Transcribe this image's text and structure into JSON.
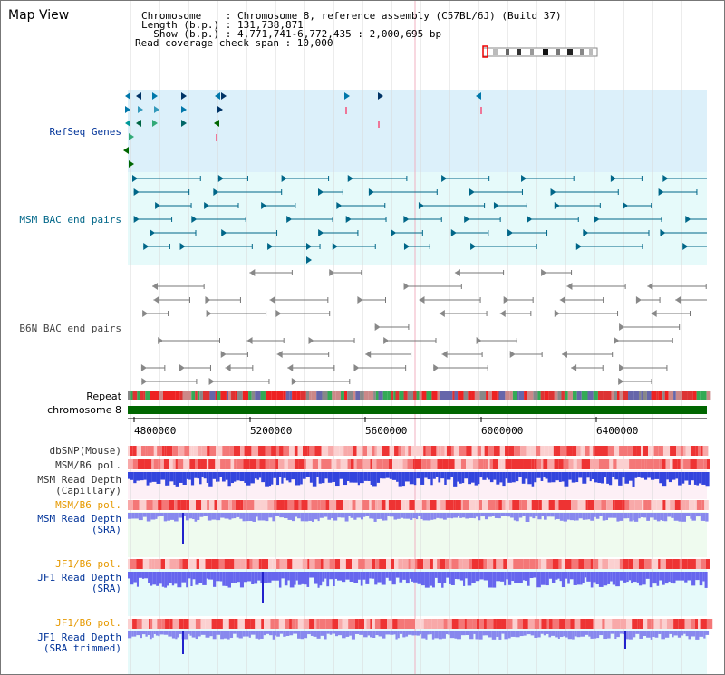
{
  "view": {
    "title": "Map View",
    "info_lines": [
      "Chromosome    : Chromosome 8, reference assembly (C57BL/6J) (Build 37)",
      "Length (b.p.) : 131,738,871",
      "  Show (b.p.) : 4,771,741-6,772,435 : 2,000,695 bp",
      "Read coverage check span : 10,000"
    ]
  },
  "tracks": {
    "refseq_genes": "RefSeq Genes",
    "msm_bac": "MSM BAC end pairs",
    "b6n_bac": "B6N BAC end pairs",
    "repeat": "Repeat",
    "chromosome": "chromosome 8",
    "dbsnp": "dbSNP(Mouse)",
    "msm_b6_pol_1": "MSM/B6 pol.",
    "msm_read_depth_cap_1": "MSM Read Depth",
    "msm_read_depth_cap_2": "(Capillary)",
    "msm_b6_pol_2": "MSM/B6 pol.",
    "msm_read_depth_sra_1": "MSM Read Depth",
    "msm_read_depth_sra_2": "(SRA)",
    "jf1_b6_pol_1": "JF1/B6 pol.",
    "jf1_read_depth_1": "JF1 Read Depth",
    "jf1_read_depth_2": "(SRA)",
    "jf1_b6_pol_2": "JF1/B6 pol.",
    "jf1_trimmed_1": "JF1 Read Depth",
    "jf1_trimmed_2": "(SRA trimmed)"
  },
  "axis": {
    "ticks": [
      "4800000",
      "5200000",
      "5600000",
      "6000000",
      "6400000"
    ],
    "range": [
      4771741,
      6772435
    ]
  },
  "colors": {
    "refseq_bg": "#dcf0fa",
    "msm_bg": "#e6fafa",
    "b6n_bg": "#f4f4f4",
    "label_blue": "#003399",
    "label_teal": "#006688",
    "label_orange": "#e69900",
    "depth_blue": "#3333dd",
    "chromosome_green": "#006600"
  }
}
